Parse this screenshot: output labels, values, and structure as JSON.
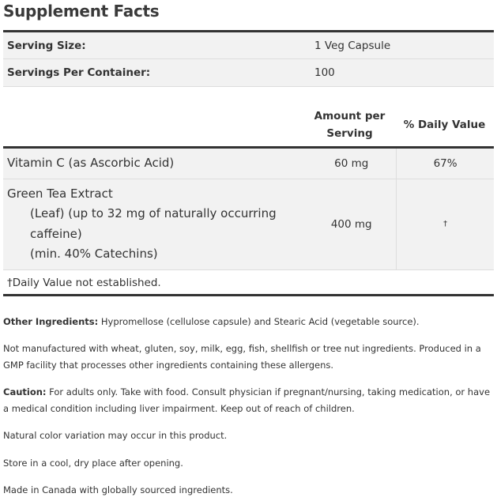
{
  "title": "Supplement Facts",
  "serving": [
    {
      "label": "Serving Size:",
      "value": "1 Veg Capsule"
    },
    {
      "label": "Servings Per Container:",
      "value": "100"
    }
  ],
  "header": {
    "amount": "Amount per Serving",
    "daily_value": "% Daily Value"
  },
  "nutrients": [
    {
      "name": "Vitamin C (as Ascorbic Acid)",
      "amount": "60 mg",
      "dv": "67%"
    },
    {
      "name": "Green Tea Extract",
      "sub": [
        "(Leaf) (up to 32 mg of naturally occurring caffeine)",
        "(min. 40% Catechins)"
      ],
      "amount": "400 mg",
      "dv": "†"
    }
  ],
  "footnote": "†Daily Value not established.",
  "paragraphs": {
    "other_label": "Other Ingredients:",
    "other_text": " Hypromellose (cellulose capsule) and Stearic Acid (vegetable source).",
    "allergen": "Not manufactured with wheat, gluten, soy, milk, egg, fish, shellfish or tree nut ingredients. Produced in a GMP facility that processes other ingredients containing these allergens.",
    "caution_label": "Caution:",
    "caution_text": " For adults only. Take with food. Consult physician if pregnant/nursing, taking medication, or have a medical condition including liver impairment. Keep out of reach of children.",
    "color": "Natural color variation may occur in this product.",
    "store": "Store in a cool, dry place after opening.",
    "made": "Made in Canada with globally sourced ingredients."
  }
}
